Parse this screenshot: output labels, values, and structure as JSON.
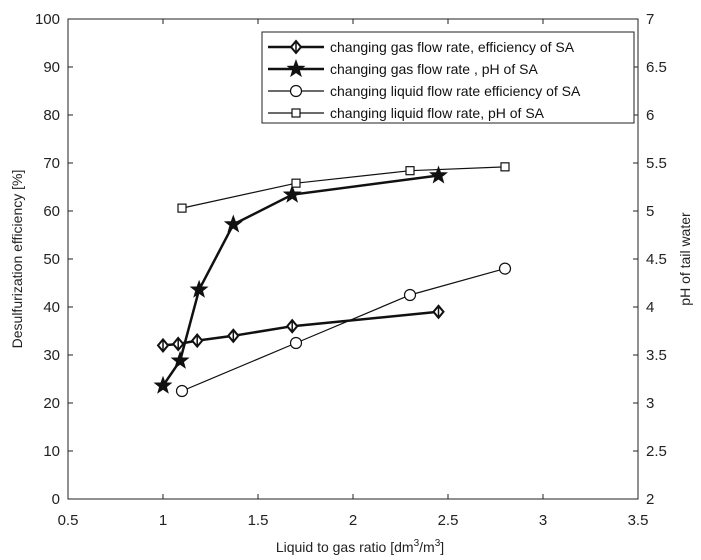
{
  "chart_data": {
    "type": "line",
    "xlabel": "Liquid to gas ratio [dm3/m3]",
    "ylabel_left": "Desulfurization efficiency [%]",
    "ylabel_right": "pH of tail water",
    "xlim": [
      0.5,
      3.5
    ],
    "ylim_left": [
      0,
      100
    ],
    "ylim_right": [
      2,
      7
    ],
    "x_ticks": [
      "0.5",
      "1",
      "1.5",
      "2",
      "2.5",
      "3",
      "3.5"
    ],
    "y_left_ticks": [
      "0",
      "10",
      "20",
      "30",
      "40",
      "50",
      "60",
      "70",
      "80",
      "90",
      "100"
    ],
    "y_right_ticks": [
      "2",
      "2.5",
      "3",
      "3.5",
      "4",
      "4.5",
      "5",
      "5.5",
      "6",
      "6.5",
      "7"
    ],
    "grid": false,
    "legend_position": "top-right",
    "series": [
      {
        "name": "changing gas flow rate, efficiency of SA",
        "axis": "left",
        "marker": "diamond",
        "line_weight": "bold",
        "x": [
          1.0,
          1.08,
          1.18,
          1.37,
          1.68,
          2.45
        ],
        "y": [
          32.0,
          32.3,
          33.0,
          34.0,
          36.0,
          39.0
        ]
      },
      {
        "name": "changing gas flow rate , pH of SA",
        "axis": "right",
        "marker": "star",
        "line_weight": "bold",
        "x": [
          1.0,
          1.09,
          1.19,
          1.37,
          1.68,
          2.45
        ],
        "y": [
          3.18,
          3.44,
          4.18,
          4.86,
          5.17,
          5.37
        ]
      },
      {
        "name": "changing liquid flow rate efficiency of SA",
        "axis": "left",
        "marker": "circle",
        "line_weight": "thin",
        "x": [
          1.1,
          1.7,
          2.3,
          2.8
        ],
        "y": [
          22.5,
          32.5,
          42.5,
          48.0
        ]
      },
      {
        "name": "changing liquid flow rate,  pH of SA",
        "axis": "right",
        "marker": "square",
        "line_weight": "thin",
        "x": [
          1.1,
          1.7,
          2.3,
          2.8
        ],
        "y": [
          5.03,
          5.29,
          5.42,
          5.46
        ]
      }
    ]
  },
  "colors": {
    "line": "#111111",
    "axis": "#222222",
    "background": "#ffffff"
  }
}
